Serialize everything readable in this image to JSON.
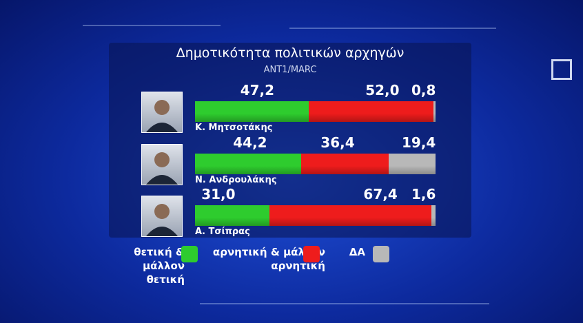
{
  "chart_data": {
    "type": "stacked-bar-horizontal",
    "title": "Δημοτικότητα πολιτικών αρχηγών",
    "subtitle": "ANT1/MARC",
    "categories": [
      "Κ. Μητσοτάκης",
      "Ν. Ανδρουλάκης",
      "Α. Τσίπρας"
    ],
    "series": [
      {
        "name": "θετική & μάλλον θετική",
        "color": "#2ecc2e",
        "values": [
          47.2,
          44.2,
          31.0
        ],
        "value_labels": [
          "47,2",
          "44,2",
          "31,0"
        ]
      },
      {
        "name": "αρνητική & μάλλον αρνητική",
        "color": "#ee1c1c",
        "values": [
          52.0,
          36.4,
          67.4
        ],
        "value_labels": [
          "52,0",
          "36,4",
          "67,4"
        ]
      },
      {
        "name": "ΔΑ",
        "color": "#b8b8b8",
        "values": [
          0.8,
          19.4,
          1.6
        ],
        "value_labels": [
          "0,8",
          "19,4",
          "1,6"
        ]
      }
    ]
  }
}
